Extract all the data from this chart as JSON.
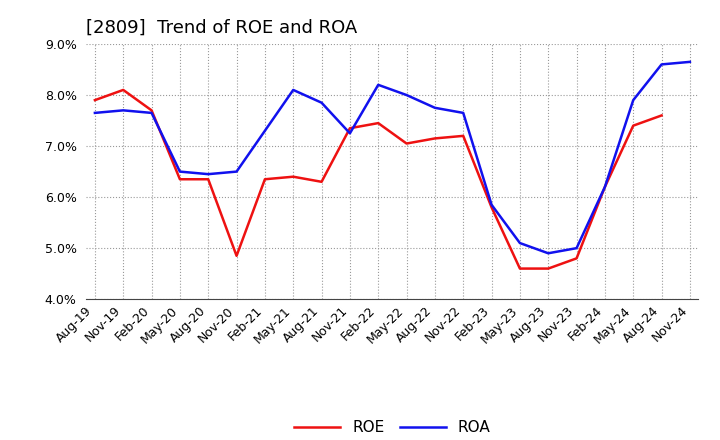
{
  "title": "[2809]  Trend of ROE and ROA",
  "xlabels": [
    "Aug-19",
    "Nov-19",
    "Feb-20",
    "May-20",
    "Aug-20",
    "Nov-20",
    "Feb-21",
    "May-21",
    "Aug-21",
    "Nov-21",
    "Feb-22",
    "May-22",
    "Aug-22",
    "Nov-22",
    "Feb-23",
    "May-23",
    "Aug-23",
    "Nov-23",
    "Feb-24",
    "May-24",
    "Aug-24",
    "Nov-24"
  ],
  "roe": [
    7.9,
    8.1,
    7.7,
    6.35,
    6.35,
    4.85,
    6.35,
    6.4,
    6.3,
    7.35,
    7.45,
    7.05,
    7.15,
    7.2,
    5.8,
    4.6,
    4.6,
    4.8,
    6.2,
    7.4,
    7.6,
    null
  ],
  "roa": [
    7.65,
    7.7,
    7.65,
    6.5,
    6.45,
    6.5,
    7.3,
    8.1,
    7.85,
    7.25,
    8.2,
    8.0,
    7.75,
    7.65,
    5.85,
    5.1,
    4.9,
    5.0,
    6.2,
    7.9,
    8.6,
    8.65
  ],
  "ylim": [
    4.0,
    9.0
  ],
  "yticks": [
    4.0,
    5.0,
    6.0,
    7.0,
    8.0,
    9.0
  ],
  "roe_color": "#ee1111",
  "roa_color": "#1111ee",
  "background_color": "#ffffff",
  "grid_color": "#999999",
  "line_width": 1.8,
  "title_fontsize": 13,
  "tick_fontsize": 9,
  "legend_fontsize": 11
}
